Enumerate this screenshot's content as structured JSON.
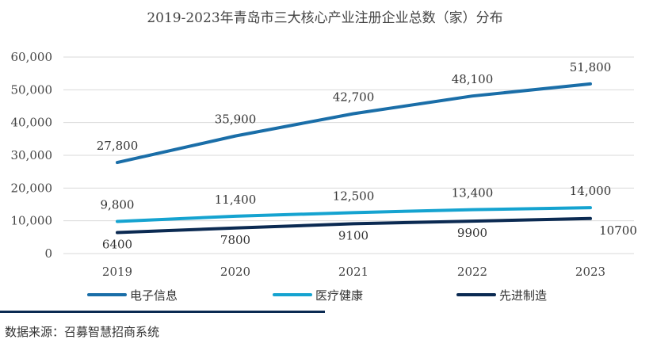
{
  "chart_data": {
    "type": "line",
    "title": "2019-2023年青岛市三大核心产业注册企业总数（家）分布",
    "categories": [
      "2019",
      "2020",
      "2021",
      "2022",
      "2023"
    ],
    "ylim": [
      0,
      60000
    ],
    "yticks": [
      0,
      10000,
      20000,
      30000,
      40000,
      50000,
      60000
    ],
    "ytick_labels": [
      "0",
      "10,000",
      "20,000",
      "30,000",
      "40,000",
      "50,000",
      "60,000"
    ],
    "grid": true,
    "legend_position": "bottom",
    "series": [
      {
        "name": "电子信息",
        "color": "#1a6ea8",
        "values": [
          27800,
          35900,
          42700,
          48100,
          51800
        ],
        "labels": [
          "27,800",
          "35,900",
          "42,700",
          "48,100",
          "51,800"
        ],
        "label_position": "above"
      },
      {
        "name": "医疗健康",
        "color": "#15a3d0",
        "values": [
          9800,
          11400,
          12500,
          13400,
          14000
        ],
        "labels": [
          "9,800",
          "11,400",
          "12,500",
          "13,400",
          "14,000"
        ],
        "label_position": "above"
      },
      {
        "name": "先进制造",
        "color": "#0b2a52",
        "values": [
          6400,
          7800,
          9100,
          9900,
          10700
        ],
        "labels": [
          "6400",
          "7800",
          "9100",
          "9900",
          "10700"
        ],
        "label_position": "below"
      }
    ]
  },
  "footer": {
    "source": "数据来源：召募智慧招商系统"
  }
}
